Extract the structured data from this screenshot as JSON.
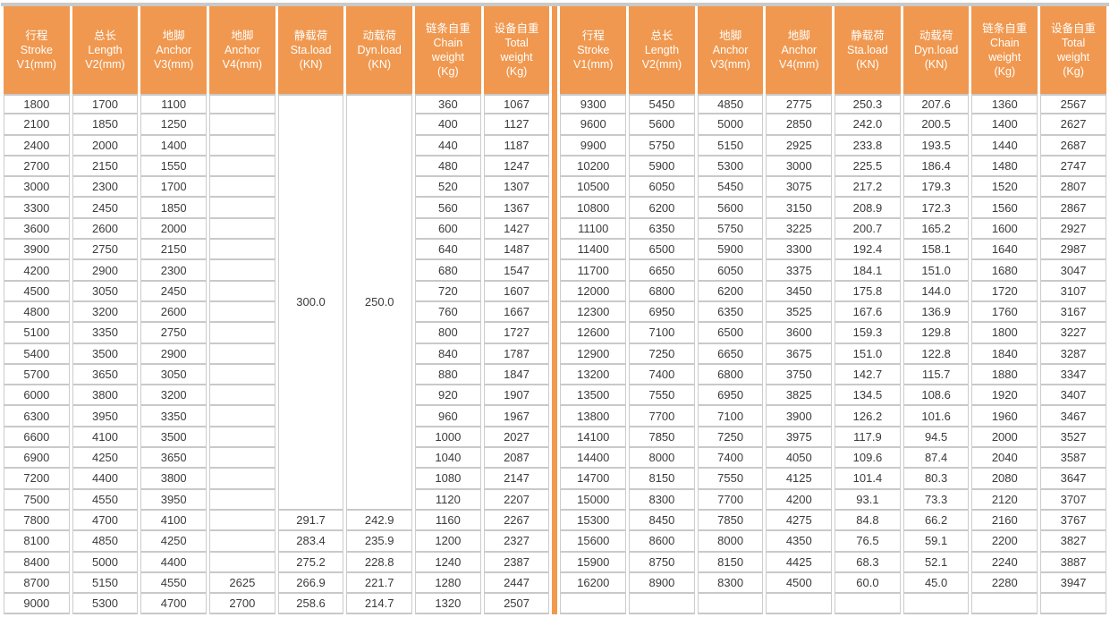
{
  "colors": {
    "header_bg": "#F0984F",
    "divider_line": "#F2994E",
    "grid_line": "#C9C9C9",
    "cell_text": "#3B3B3B",
    "header_text": "#FFFFFF"
  },
  "table": {
    "columns": [
      {
        "name": "stroke-v1",
        "lines": [
          "行程",
          "Stroke",
          "V1(mm)"
        ]
      },
      {
        "name": "length-v2",
        "lines": [
          "总长",
          "Length",
          "V2(mm)"
        ]
      },
      {
        "name": "anchor-v3",
        "lines": [
          "地脚",
          "Anchor",
          "V3(mm)"
        ]
      },
      {
        "name": "anchor-v4",
        "lines": [
          "地脚",
          "Anchor",
          "V4(mm)"
        ]
      },
      {
        "name": "static-load",
        "lines": [
          "静载荷",
          "Sta.load",
          "(KN)"
        ]
      },
      {
        "name": "dynamic-load",
        "lines": [
          "动载荷",
          "Dyn.load",
          "(KN)"
        ]
      },
      {
        "name": "chain-weight",
        "lines": [
          "链条自重",
          "Chain",
          "weight",
          "(Kg)"
        ]
      },
      {
        "name": "total-weight",
        "lines": [
          "设备自重",
          "Total",
          "weight",
          "(Kg)"
        ]
      }
    ],
    "merged": {
      "sta_load": "300.0",
      "dyn_load": "250.0",
      "row_span": 20
    },
    "left_rows": [
      [
        "1800",
        "1700",
        "1100",
        "",
        null,
        null,
        "360",
        "1067"
      ],
      [
        "2100",
        "1850",
        "1250",
        "",
        null,
        null,
        "400",
        "1127"
      ],
      [
        "2400",
        "2000",
        "1400",
        "",
        null,
        null,
        "440",
        "1187"
      ],
      [
        "2700",
        "2150",
        "1550",
        "",
        null,
        null,
        "480",
        "1247"
      ],
      [
        "3000",
        "2300",
        "1700",
        "",
        null,
        null,
        "520",
        "1307"
      ],
      [
        "3300",
        "2450",
        "1850",
        "",
        null,
        null,
        "560",
        "1367"
      ],
      [
        "3600",
        "2600",
        "2000",
        "",
        null,
        null,
        "600",
        "1427"
      ],
      [
        "3900",
        "2750",
        "2150",
        "",
        null,
        null,
        "640",
        "1487"
      ],
      [
        "4200",
        "2900",
        "2300",
        "",
        null,
        null,
        "680",
        "1547"
      ],
      [
        "4500",
        "3050",
        "2450",
        "",
        null,
        null,
        "720",
        "1607"
      ],
      [
        "4800",
        "3200",
        "2600",
        "",
        null,
        null,
        "760",
        "1667"
      ],
      [
        "5100",
        "3350",
        "2750",
        "",
        null,
        null,
        "800",
        "1727"
      ],
      [
        "5400",
        "3500",
        "2900",
        "",
        null,
        null,
        "840",
        "1787"
      ],
      [
        "5700",
        "3650",
        "3050",
        "",
        null,
        null,
        "880",
        "1847"
      ],
      [
        "6000",
        "3800",
        "3200",
        "",
        null,
        null,
        "920",
        "1907"
      ],
      [
        "6300",
        "3950",
        "3350",
        "",
        null,
        null,
        "960",
        "1967"
      ],
      [
        "6600",
        "4100",
        "3500",
        "",
        null,
        null,
        "1000",
        "2027"
      ],
      [
        "6900",
        "4250",
        "3650",
        "",
        null,
        null,
        "1040",
        "2087"
      ],
      [
        "7200",
        "4400",
        "3800",
        "",
        null,
        null,
        "1080",
        "2147"
      ],
      [
        "7500",
        "4550",
        "3950",
        "",
        null,
        null,
        "1120",
        "2207"
      ],
      [
        "7800",
        "4700",
        "4100",
        "",
        "291.7",
        "242.9",
        "1160",
        "2267"
      ],
      [
        "8100",
        "4850",
        "4250",
        "",
        "283.4",
        "235.9",
        "1200",
        "2327"
      ],
      [
        "8400",
        "5000",
        "4400",
        "",
        "275.2",
        "228.8",
        "1240",
        "2387"
      ],
      [
        "8700",
        "5150",
        "4550",
        "2625",
        "266.9",
        "221.7",
        "1280",
        "2447"
      ],
      [
        "9000",
        "5300",
        "4700",
        "2700",
        "258.6",
        "214.7",
        "1320",
        "2507"
      ]
    ],
    "right_rows": [
      [
        "9300",
        "5450",
        "4850",
        "2775",
        "250.3",
        "207.6",
        "1360",
        "2567"
      ],
      [
        "9600",
        "5600",
        "5000",
        "2850",
        "242.0",
        "200.5",
        "1400",
        "2627"
      ],
      [
        "9900",
        "5750",
        "5150",
        "2925",
        "233.8",
        "193.5",
        "1440",
        "2687"
      ],
      [
        "10200",
        "5900",
        "5300",
        "3000",
        "225.5",
        "186.4",
        "1480",
        "2747"
      ],
      [
        "10500",
        "6050",
        "5450",
        "3075",
        "217.2",
        "179.3",
        "1520",
        "2807"
      ],
      [
        "10800",
        "6200",
        "5600",
        "3150",
        "208.9",
        "172.3",
        "1560",
        "2867"
      ],
      [
        "11100",
        "6350",
        "5750",
        "3225",
        "200.7",
        "165.2",
        "1600",
        "2927"
      ],
      [
        "11400",
        "6500",
        "5900",
        "3300",
        "192.4",
        "158.1",
        "1640",
        "2987"
      ],
      [
        "11700",
        "6650",
        "6050",
        "3375",
        "184.1",
        "151.0",
        "1680",
        "3047"
      ],
      [
        "12000",
        "6800",
        "6200",
        "3450",
        "175.8",
        "144.0",
        "1720",
        "3107"
      ],
      [
        "12300",
        "6950",
        "6350",
        "3525",
        "167.6",
        "136.9",
        "1760",
        "3167"
      ],
      [
        "12600",
        "7100",
        "6500",
        "3600",
        "159.3",
        "129.8",
        "1800",
        "3227"
      ],
      [
        "12900",
        "7250",
        "6650",
        "3675",
        "151.0",
        "122.8",
        "1840",
        "3287"
      ],
      [
        "13200",
        "7400",
        "6800",
        "3750",
        "142.7",
        "115.7",
        "1880",
        "3347"
      ],
      [
        "13500",
        "7550",
        "6950",
        "3825",
        "134.5",
        "108.6",
        "1920",
        "3407"
      ],
      [
        "13800",
        "7700",
        "7100",
        "3900",
        "126.2",
        "101.6",
        "1960",
        "3467"
      ],
      [
        "14100",
        "7850",
        "7250",
        "3975",
        "117.9",
        "94.5",
        "2000",
        "3527"
      ],
      [
        "14400",
        "8000",
        "7400",
        "4050",
        "109.6",
        "87.4",
        "2040",
        "3587"
      ],
      [
        "14700",
        "8150",
        "7550",
        "4125",
        "101.4",
        "80.3",
        "2080",
        "3647"
      ],
      [
        "15000",
        "8300",
        "7700",
        "4200",
        "93.1",
        "73.3",
        "2120",
        "3707"
      ],
      [
        "15300",
        "8450",
        "7850",
        "4275",
        "84.8",
        "66.2",
        "2160",
        "3767"
      ],
      [
        "15600",
        "8600",
        "8000",
        "4350",
        "76.5",
        "59.1",
        "2200",
        "3827"
      ],
      [
        "15900",
        "8750",
        "8150",
        "4425",
        "68.3",
        "52.1",
        "2240",
        "3887"
      ],
      [
        "16200",
        "8900",
        "8300",
        "4500",
        "60.0",
        "45.0",
        "2280",
        "3947"
      ],
      [
        "",
        "",
        "",
        "",
        "",
        "",
        "",
        ""
      ]
    ]
  }
}
